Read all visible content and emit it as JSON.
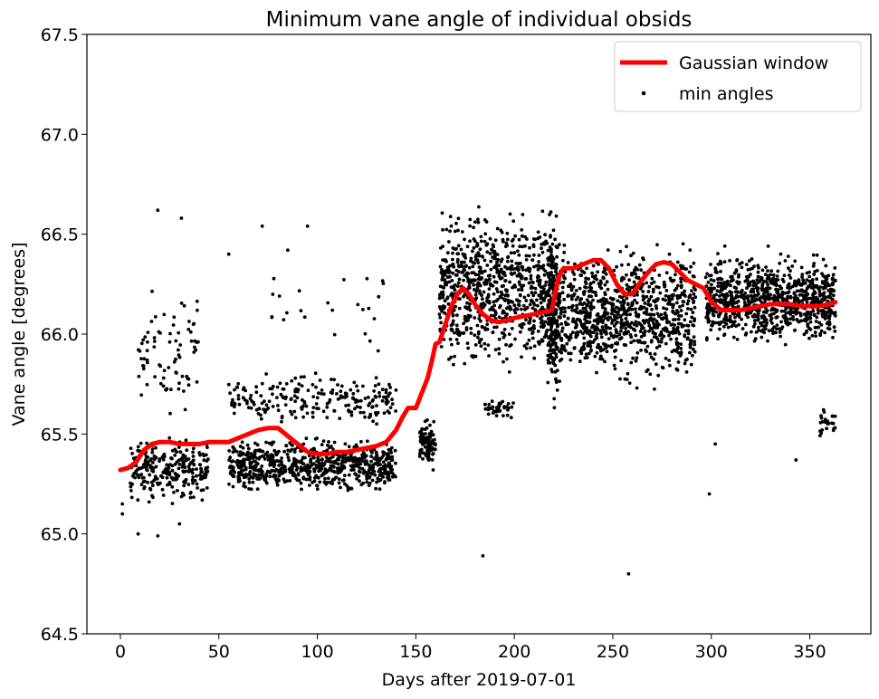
{
  "chart_data": {
    "type": "line+scatter",
    "title": "Minimum vane angle of individual obsids",
    "xlabel": "Days after 2019-07-01",
    "ylabel": "Vane angle [degrees]",
    "xlim": [
      -17,
      381
    ],
    "ylim": [
      64.5,
      67.5
    ],
    "xticks": [
      0,
      50,
      100,
      150,
      200,
      250,
      300,
      350
    ],
    "xtick_labels": [
      "0",
      "50",
      "100",
      "150",
      "200",
      "250",
      "300",
      "350"
    ],
    "yticks": [
      64.5,
      65.0,
      65.5,
      66.0,
      66.5,
      67.0,
      67.5
    ],
    "ytick_labels": [
      "64.5",
      "65.0",
      "65.5",
      "66.0",
      "66.5",
      "67.0",
      "67.5"
    ],
    "grid": false,
    "legend_position": "upper right",
    "series": [
      {
        "name": "Gaussian window",
        "kind": "line",
        "color": "#ff0000",
        "x": [
          0,
          4,
          8,
          12,
          16,
          20,
          25,
          30,
          35,
          40,
          45,
          50,
          55,
          60,
          65,
          70,
          75,
          80,
          85,
          90,
          95,
          100,
          105,
          110,
          115,
          120,
          125,
          130,
          135,
          140,
          143,
          146,
          150,
          152,
          154,
          156,
          158,
          160,
          162,
          165,
          168,
          171,
          174,
          177,
          180,
          184,
          188,
          192,
          196,
          200,
          205,
          210,
          215,
          219,
          221,
          223,
          225,
          230,
          235,
          240,
          244,
          248,
          252,
          256,
          260,
          264,
          268,
          272,
          276,
          280,
          284,
          288,
          292,
          296,
          300,
          305,
          310,
          315,
          320,
          325,
          330,
          335,
          340,
          345,
          350,
          355,
          360,
          363
        ],
        "y": [
          65.32,
          65.33,
          65.36,
          65.42,
          65.45,
          65.46,
          65.46,
          65.45,
          65.45,
          65.45,
          65.46,
          65.46,
          65.46,
          65.48,
          65.5,
          65.52,
          65.53,
          65.53,
          65.49,
          65.45,
          65.41,
          65.4,
          65.4,
          65.41,
          65.41,
          65.42,
          65.43,
          65.44,
          65.46,
          65.52,
          65.58,
          65.63,
          65.63,
          65.68,
          65.73,
          65.78,
          65.86,
          65.95,
          65.96,
          66.05,
          66.14,
          66.2,
          66.23,
          66.2,
          66.15,
          66.1,
          66.07,
          66.06,
          66.07,
          66.08,
          66.09,
          66.1,
          66.11,
          66.12,
          66.22,
          66.3,
          66.33,
          66.33,
          66.35,
          66.37,
          66.37,
          66.33,
          66.25,
          66.2,
          66.2,
          66.26,
          66.31,
          66.35,
          66.36,
          66.35,
          66.31,
          66.27,
          66.25,
          66.23,
          66.16,
          66.12,
          66.12,
          66.12,
          66.13,
          66.14,
          66.15,
          66.15,
          66.15,
          66.14,
          66.14,
          66.14,
          66.15,
          66.16
        ]
      },
      {
        "name": "min angles",
        "kind": "scatter",
        "color": "#000000",
        "clusters": [
          {
            "x": [
              5,
              45
            ],
            "y": [
              65.12,
              65.52
            ],
            "n": 260
          },
          {
            "x": [
              8,
              40
            ],
            "y": [
              65.55,
              66.3
            ],
            "n": 80
          },
          {
            "x": [
              55,
              140
            ],
            "y": [
              65.18,
              65.5
            ],
            "n": 700
          },
          {
            "x": [
              55,
              140
            ],
            "y": [
              65.5,
              65.85
            ],
            "n": 220
          },
          {
            "x": [
              75,
              140
            ],
            "y": [
              65.85,
              66.45
            ],
            "n": 25
          },
          {
            "x": [
              152,
              160
            ],
            "y": [
              65.3,
              65.6
            ],
            "n": 90
          },
          {
            "x": [
              162,
              220
            ],
            "y": [
              65.75,
              66.7
            ],
            "n": 800
          },
          {
            "x": [
              185,
              200
            ],
            "y": [
              65.55,
              65.7
            ],
            "n": 40
          },
          {
            "x": [
              217,
              222
            ],
            "y": [
              65.55,
              66.7
            ],
            "n": 200
          },
          {
            "x": [
              222,
              292
            ],
            "y": [
              65.7,
              66.5
            ],
            "n": 900
          },
          {
            "x": [
              297,
              363
            ],
            "y": [
              65.9,
              66.45
            ],
            "n": 900
          },
          {
            "x": [
              355,
              363
            ],
            "y": [
              65.45,
              65.65
            ],
            "n": 25
          }
        ],
        "outliers": [
          {
            "x": 1,
            "y": 65.15
          },
          {
            "x": 1,
            "y": 65.1
          },
          {
            "x": 9,
            "y": 65.0
          },
          {
            "x": 19,
            "y": 64.99
          },
          {
            "x": 19,
            "y": 66.62
          },
          {
            "x": 31,
            "y": 66.58
          },
          {
            "x": 30,
            "y": 65.05
          },
          {
            "x": 72,
            "y": 66.54
          },
          {
            "x": 85,
            "y": 66.42
          },
          {
            "x": 95,
            "y": 66.54
          },
          {
            "x": 184,
            "y": 64.89
          },
          {
            "x": 258,
            "y": 64.8
          },
          {
            "x": 299,
            "y": 65.2
          },
          {
            "x": 302,
            "y": 65.45
          },
          {
            "x": 343,
            "y": 65.37
          },
          {
            "x": 55,
            "y": 66.4
          }
        ]
      }
    ]
  }
}
